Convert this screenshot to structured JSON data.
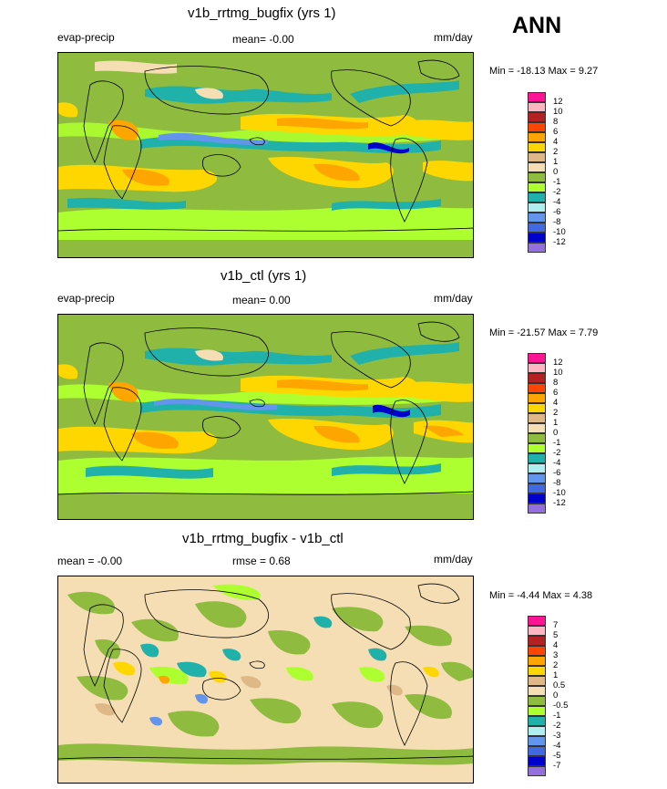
{
  "season": "ANN",
  "panels": [
    {
      "title": "v1b_rrtmg_bugfix (yrs 1)",
      "left_label": "evap-precip",
      "center_label": "mean=  -0.00",
      "units": "mm/day",
      "minmax": "Min = -18.13 Max =   9.27",
      "levels": [
        "12",
        "10",
        "8",
        "6",
        "4",
        "2",
        "1",
        "0",
        "-1",
        "-2",
        "-4",
        "-6",
        "-8",
        "-10",
        "-12"
      ],
      "colors": [
        "#ff1493",
        "#ffb6c1",
        "#b22222",
        "#ff4500",
        "#ffa500",
        "#ffd700",
        "#deb887",
        "#f5deb3",
        "#8fbc3f",
        "#adff2f",
        "#20b2aa",
        "#afeeee",
        "#6495ed",
        "#4169e1",
        "#0000cd",
        "#9370db"
      ]
    },
    {
      "title": "v1b_ctl (yrs 1)",
      "left_label": "evap-precip",
      "center_label": "mean=   0.00",
      "units": "mm/day",
      "minmax": "Min = -21.57 Max =   7.79",
      "levels": [
        "12",
        "10",
        "8",
        "6",
        "4",
        "2",
        "1",
        "0",
        "-1",
        "-2",
        "-4",
        "-6",
        "-8",
        "-10",
        "-12"
      ],
      "colors": [
        "#ff1493",
        "#ffb6c1",
        "#b22222",
        "#ff4500",
        "#ffa500",
        "#ffd700",
        "#deb887",
        "#f5deb3",
        "#8fbc3f",
        "#adff2f",
        "#20b2aa",
        "#afeeee",
        "#6495ed",
        "#4169e1",
        "#0000cd",
        "#9370db"
      ]
    },
    {
      "title": "v1b_rrtmg_bugfix - v1b_ctl",
      "left_label": "mean =  -0.00",
      "center_label": "rmse =   0.68",
      "units": "mm/day",
      "minmax": "Min =  -4.44 Max =   4.38",
      "levels": [
        "7",
        "5",
        "4",
        "3",
        "2",
        "1",
        "0.5",
        "0",
        "-0.5",
        "-1",
        "-2",
        "-3",
        "-4",
        "-5",
        "-7"
      ],
      "colors": [
        "#ff1493",
        "#ffb6c1",
        "#b22222",
        "#ff4500",
        "#ffa500",
        "#ffd700",
        "#deb887",
        "#f5deb3",
        "#8fbc3f",
        "#adff2f",
        "#20b2aa",
        "#afeeee",
        "#6495ed",
        "#4169e1",
        "#0000cd",
        "#9370db"
      ]
    }
  ]
}
